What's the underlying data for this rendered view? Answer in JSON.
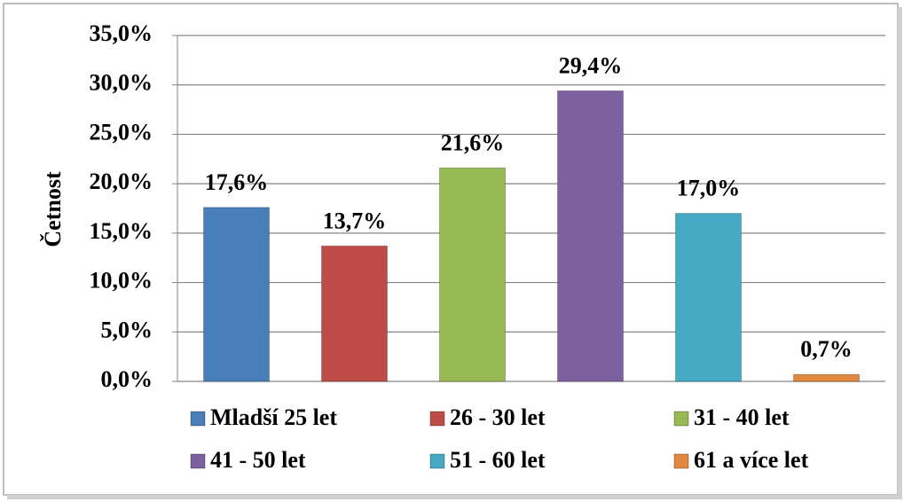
{
  "chart_data": {
    "type": "bar",
    "y_label": "Četnost",
    "categories": [
      "Mladší 25 let",
      "26 - 30 let",
      "31 - 40 let",
      "41 - 50 let",
      "51 - 60 let",
      "61 a více let"
    ],
    "values": [
      17.6,
      13.7,
      21.6,
      29.4,
      17.0,
      0.7
    ],
    "value_labels": [
      "17,6%",
      "13,7%",
      "21,6%",
      "29,4%",
      "17,0%",
      "0,7%"
    ],
    "colors": [
      "#4a7ebb",
      "#be4b48",
      "#98b954",
      "#7d60a0",
      "#46aac5",
      "#e3883f"
    ],
    "ylim": [
      0,
      35
    ],
    "yticks": [
      {
        "value": 0,
        "label": "0,0%"
      },
      {
        "value": 5,
        "label": "5,0%"
      },
      {
        "value": 10,
        "label": "10,0%"
      },
      {
        "value": 15,
        "label": "15,0%"
      },
      {
        "value": 20,
        "label": "20,0%"
      },
      {
        "value": 25,
        "label": "25,0%"
      },
      {
        "value": 30,
        "label": "30,0%"
      },
      {
        "value": 35,
        "label": "35,0%"
      }
    ],
    "grid": true,
    "legend": "bottom"
  }
}
